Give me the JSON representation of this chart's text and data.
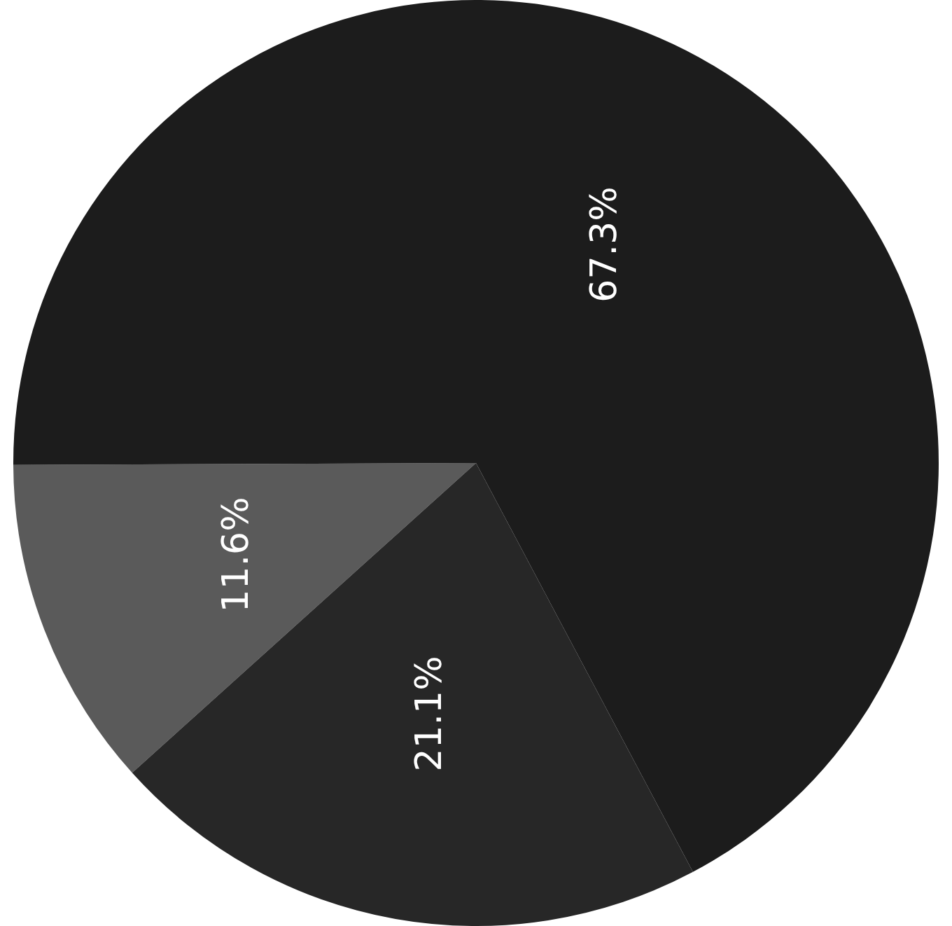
{
  "chart_data": {
    "type": "pie",
    "categories": [
      null,
      null,
      null
    ],
    "values": [
      11.6,
      67.3,
      21.1
    ],
    "colors": [
      "#5a5a5a",
      "#1c1c1c",
      "#272727"
    ],
    "value_labels": [
      "11.6%",
      "67.3%",
      "21.1%"
    ],
    "legend": false
  }
}
